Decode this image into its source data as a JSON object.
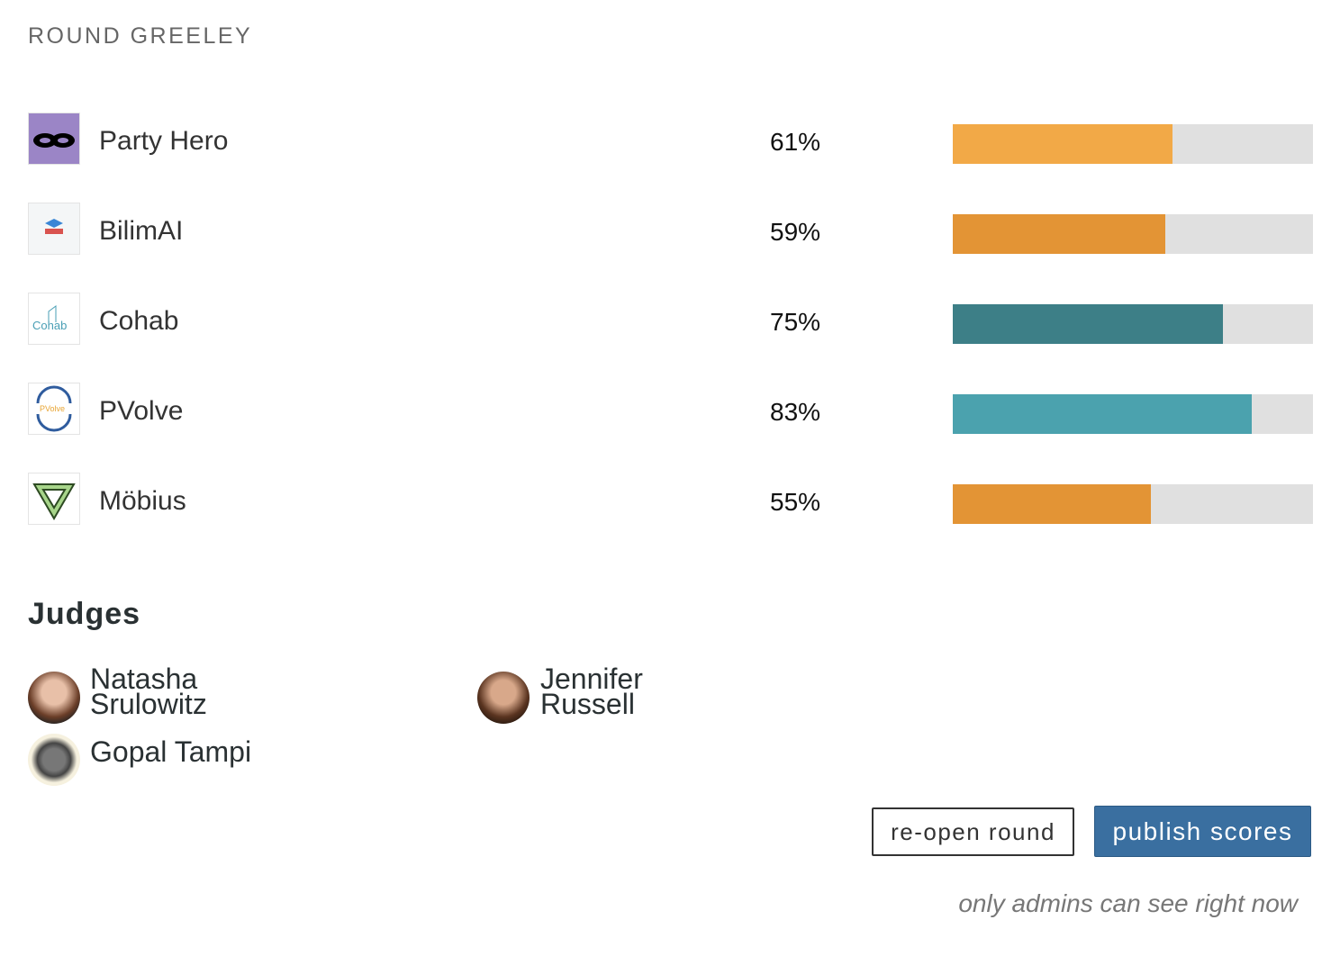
{
  "header": {
    "title": "ROUND GREELEY"
  },
  "scores": {
    "xlim": [
      0,
      100
    ],
    "track_color": "#e0e0e0",
    "teams": [
      {
        "name": "Party Hero",
        "value": 61,
        "value_label": "61%",
        "color": "#f2a947"
      },
      {
        "name": "BilimAI",
        "value": 59,
        "value_label": "59%",
        "color": "#e39435"
      },
      {
        "name": "Cohab",
        "value": 75,
        "value_label": "75%",
        "color": "#3d7f87"
      },
      {
        "name": "PVolve",
        "value": 83,
        "value_label": "83%",
        "color": "#4ba2ae"
      },
      {
        "name": "Möbius",
        "value": 55,
        "value_label": "55%",
        "color": "#e39435"
      }
    ]
  },
  "judges": {
    "title": "Judges",
    "names": [
      "Natasha Srulowitz",
      "Jennifer Russell",
      "Gopal Tampi"
    ]
  },
  "actions": {
    "reopen": "re-open round",
    "publish": "publish scores",
    "note": "only admins can see right now"
  }
}
